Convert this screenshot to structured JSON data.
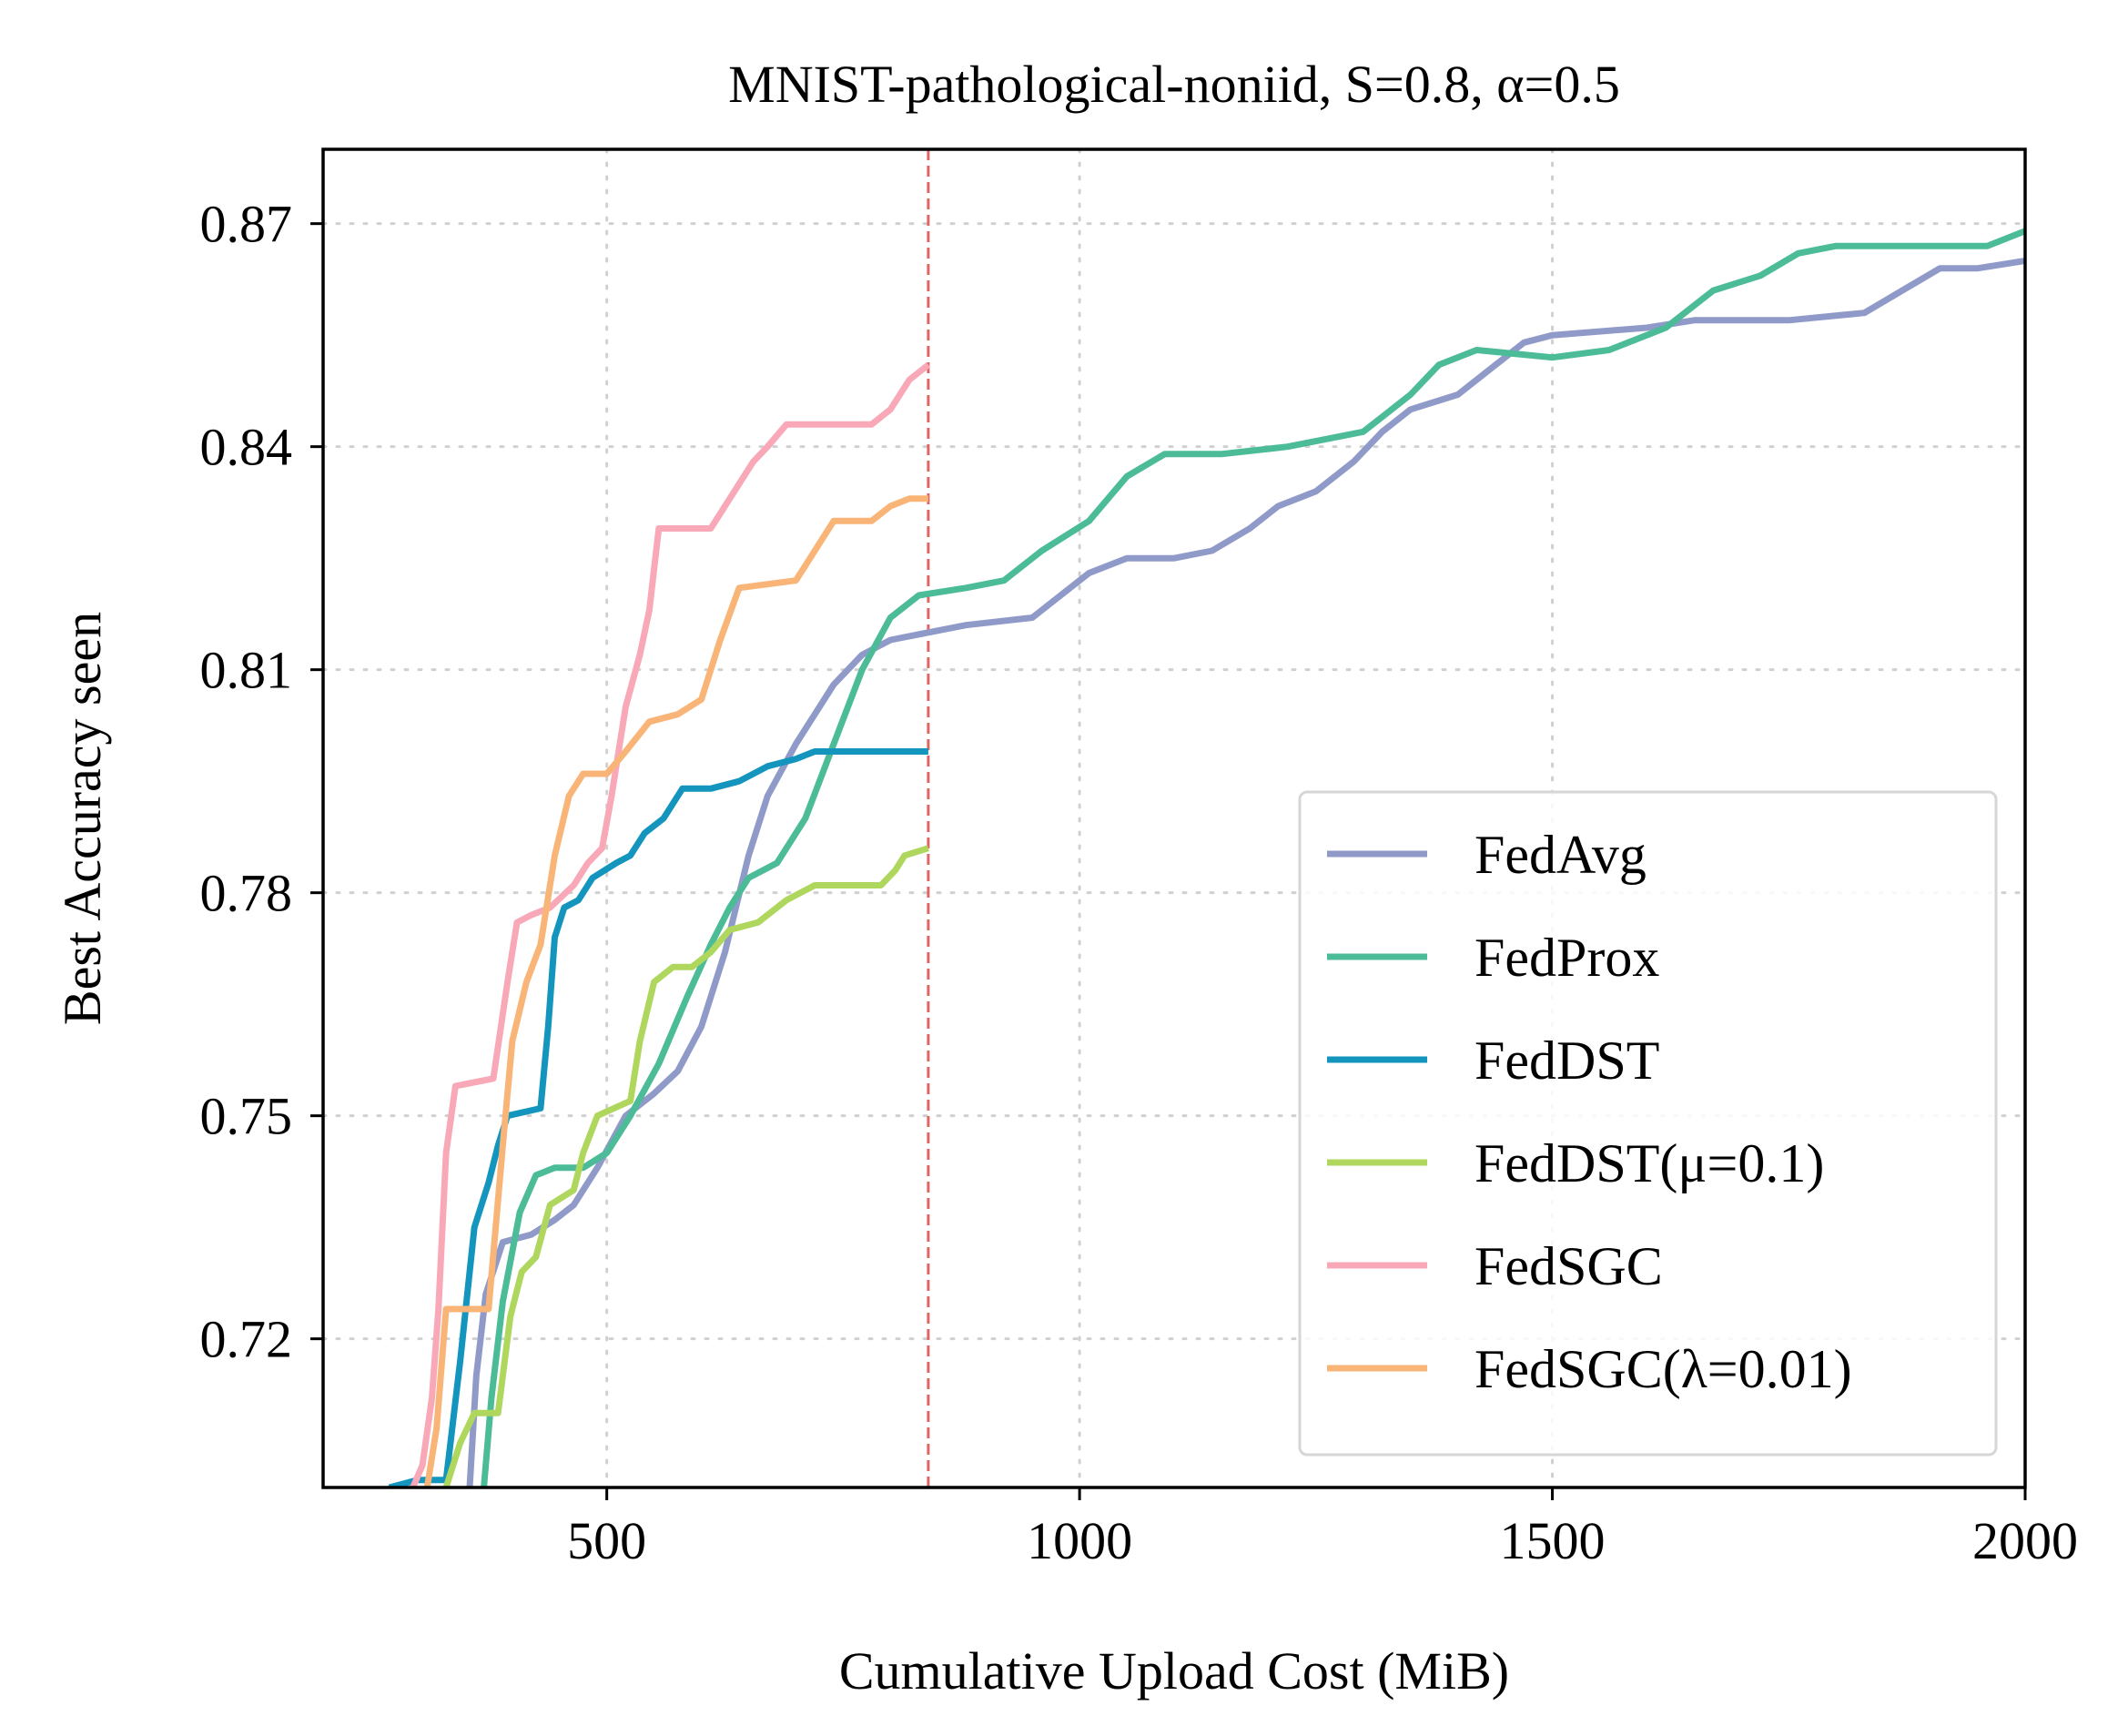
{
  "chart_data": {
    "type": "line",
    "title": "MNIST-pathological-noniid, S=0.8, α=0.5",
    "xlabel": "Cumulative Upload Cost (MiB)",
    "ylabel": "Best Accuracy seen",
    "xlim": [
      200,
      2000
    ],
    "ylim": [
      0.7,
      0.88
    ],
    "xticks": [
      500,
      1000,
      1500,
      2000
    ],
    "xtick_labels": [
      "500",
      "1000",
      "1500",
      "2000"
    ],
    "yticks": [
      0.72,
      0.75,
      0.78,
      0.81,
      0.84,
      0.87
    ],
    "ytick_labels": [
      "0.72",
      "0.75",
      "0.78",
      "0.81",
      "0.84",
      "0.87"
    ],
    "grid": true,
    "legend_position": "lower-right",
    "reference_line": {
      "x": 840,
      "color": "#e06666",
      "style": "dashed"
    },
    "series": [
      {
        "name": "FedAvg",
        "color": "#8f9ac9",
        "points": [
          [
            355,
            0.7
          ],
          [
            362,
            0.715
          ],
          [
            372,
            0.726
          ],
          [
            390,
            0.733
          ],
          [
            420,
            0.734
          ],
          [
            445,
            0.736
          ],
          [
            465,
            0.738
          ],
          [
            490,
            0.743
          ],
          [
            520,
            0.75
          ],
          [
            550,
            0.753
          ],
          [
            575,
            0.756
          ],
          [
            600,
            0.762
          ],
          [
            625,
            0.772
          ],
          [
            650,
            0.785
          ],
          [
            670,
            0.793
          ],
          [
            700,
            0.8
          ],
          [
            740,
            0.808
          ],
          [
            770,
            0.812
          ],
          [
            800,
            0.814
          ],
          [
            840,
            0.815
          ],
          [
            880,
            0.816
          ],
          [
            950,
            0.817
          ],
          [
            980,
            0.82
          ],
          [
            1010,
            0.823
          ],
          [
            1050,
            0.825
          ],
          [
            1100,
            0.825
          ],
          [
            1140,
            0.826
          ],
          [
            1180,
            0.829
          ],
          [
            1210,
            0.832
          ],
          [
            1250,
            0.834
          ],
          [
            1290,
            0.838
          ],
          [
            1320,
            0.842
          ],
          [
            1350,
            0.845
          ],
          [
            1400,
            0.847
          ],
          [
            1440,
            0.851
          ],
          [
            1470,
            0.854
          ],
          [
            1500,
            0.855
          ],
          [
            1600,
            0.856
          ],
          [
            1650,
            0.857
          ],
          [
            1750,
            0.857
          ],
          [
            1830,
            0.858
          ],
          [
            1870,
            0.861
          ],
          [
            1910,
            0.864
          ],
          [
            1950,
            0.864
          ],
          [
            2000,
            0.865
          ]
        ]
      },
      {
        "name": "FedProx",
        "color": "#4cbb97",
        "points": [
          [
            370,
            0.7
          ],
          [
            378,
            0.712
          ],
          [
            390,
            0.725
          ],
          [
            408,
            0.737
          ],
          [
            425,
            0.742
          ],
          [
            445,
            0.743
          ],
          [
            475,
            0.743
          ],
          [
            500,
            0.745
          ],
          [
            525,
            0.75
          ],
          [
            555,
            0.757
          ],
          [
            585,
            0.766
          ],
          [
            610,
            0.773
          ],
          [
            630,
            0.778
          ],
          [
            650,
            0.782
          ],
          [
            680,
            0.784
          ],
          [
            710,
            0.79
          ],
          [
            740,
            0.8
          ],
          [
            770,
            0.81
          ],
          [
            800,
            0.817
          ],
          [
            830,
            0.82
          ],
          [
            880,
            0.821
          ],
          [
            920,
            0.822
          ],
          [
            960,
            0.826
          ],
          [
            1010,
            0.83
          ],
          [
            1050,
            0.836
          ],
          [
            1090,
            0.839
          ],
          [
            1150,
            0.839
          ],
          [
            1220,
            0.84
          ],
          [
            1300,
            0.842
          ],
          [
            1350,
            0.847
          ],
          [
            1380,
            0.851
          ],
          [
            1420,
            0.853
          ],
          [
            1500,
            0.852
          ],
          [
            1560,
            0.853
          ],
          [
            1620,
            0.856
          ],
          [
            1670,
            0.861
          ],
          [
            1720,
            0.863
          ],
          [
            1760,
            0.866
          ],
          [
            1800,
            0.867
          ],
          [
            1960,
            0.867
          ],
          [
            2000,
            0.869
          ]
        ]
      },
      {
        "name": "FedDST",
        "color": "#1495bd",
        "points": [
          [
            270,
            0.7
          ],
          [
            300,
            0.701
          ],
          [
            330,
            0.701
          ],
          [
            345,
            0.717
          ],
          [
            360,
            0.735
          ],
          [
            375,
            0.741
          ],
          [
            385,
            0.746
          ],
          [
            395,
            0.75
          ],
          [
            430,
            0.751
          ],
          [
            438,
            0.762
          ],
          [
            445,
            0.774
          ],
          [
            455,
            0.778
          ],
          [
            470,
            0.779
          ],
          [
            485,
            0.782
          ],
          [
            510,
            0.784
          ],
          [
            525,
            0.785
          ],
          [
            540,
            0.788
          ],
          [
            560,
            0.79
          ],
          [
            580,
            0.794
          ],
          [
            610,
            0.794
          ],
          [
            640,
            0.795
          ],
          [
            670,
            0.797
          ],
          [
            700,
            0.798
          ],
          [
            720,
            0.799
          ],
          [
            840,
            0.799
          ]
        ]
      },
      {
        "name": "FedDST(μ=0.1)",
        "color": "#afd75e",
        "points": [
          [
            330,
            0.7
          ],
          [
            345,
            0.706
          ],
          [
            360,
            0.71
          ],
          [
            385,
            0.71
          ],
          [
            398,
            0.723
          ],
          [
            410,
            0.729
          ],
          [
            425,
            0.731
          ],
          [
            440,
            0.738
          ],
          [
            465,
            0.74
          ],
          [
            475,
            0.745
          ],
          [
            490,
            0.75
          ],
          [
            525,
            0.752
          ],
          [
            535,
            0.76
          ],
          [
            550,
            0.768
          ],
          [
            570,
            0.77
          ],
          [
            590,
            0.77
          ],
          [
            610,
            0.772
          ],
          [
            630,
            0.775
          ],
          [
            660,
            0.776
          ],
          [
            690,
            0.779
          ],
          [
            720,
            0.781
          ],
          [
            790,
            0.781
          ],
          [
            805,
            0.783
          ],
          [
            815,
            0.785
          ],
          [
            840,
            0.786
          ]
        ]
      },
      {
        "name": "FedSGC",
        "color": "#f9a8b8",
        "points": [
          [
            295,
            0.7
          ],
          [
            305,
            0.703
          ],
          [
            315,
            0.712
          ],
          [
            322,
            0.724
          ],
          [
            330,
            0.745
          ],
          [
            340,
            0.754
          ],
          [
            380,
            0.755
          ],
          [
            395,
            0.768
          ],
          [
            405,
            0.776
          ],
          [
            420,
            0.777
          ],
          [
            440,
            0.778
          ],
          [
            465,
            0.781
          ],
          [
            480,
            0.784
          ],
          [
            495,
            0.786
          ],
          [
            505,
            0.793
          ],
          [
            520,
            0.805
          ],
          [
            535,
            0.812
          ],
          [
            545,
            0.818
          ],
          [
            555,
            0.829
          ],
          [
            610,
            0.829
          ],
          [
            625,
            0.832
          ],
          [
            640,
            0.835
          ],
          [
            655,
            0.838
          ],
          [
            670,
            0.84
          ],
          [
            690,
            0.843
          ],
          [
            720,
            0.843
          ],
          [
            780,
            0.843
          ],
          [
            800,
            0.845
          ],
          [
            820,
            0.849
          ],
          [
            840,
            0.851
          ]
        ]
      },
      {
        "name": "FedSGC(λ=0.01)",
        "color": "#f9b577",
        "points": [
          [
            310,
            0.7
          ],
          [
            320,
            0.708
          ],
          [
            330,
            0.724
          ],
          [
            375,
            0.724
          ],
          [
            390,
            0.746
          ],
          [
            400,
            0.76
          ],
          [
            415,
            0.768
          ],
          [
            430,
            0.773
          ],
          [
            445,
            0.785
          ],
          [
            460,
            0.793
          ],
          [
            475,
            0.796
          ],
          [
            500,
            0.796
          ],
          [
            520,
            0.799
          ],
          [
            545,
            0.803
          ],
          [
            575,
            0.804
          ],
          [
            600,
            0.806
          ],
          [
            620,
            0.814
          ],
          [
            640,
            0.821
          ],
          [
            700,
            0.822
          ],
          [
            720,
            0.826
          ],
          [
            740,
            0.83
          ],
          [
            780,
            0.83
          ],
          [
            800,
            0.832
          ],
          [
            820,
            0.833
          ],
          [
            840,
            0.833
          ]
        ]
      }
    ]
  }
}
